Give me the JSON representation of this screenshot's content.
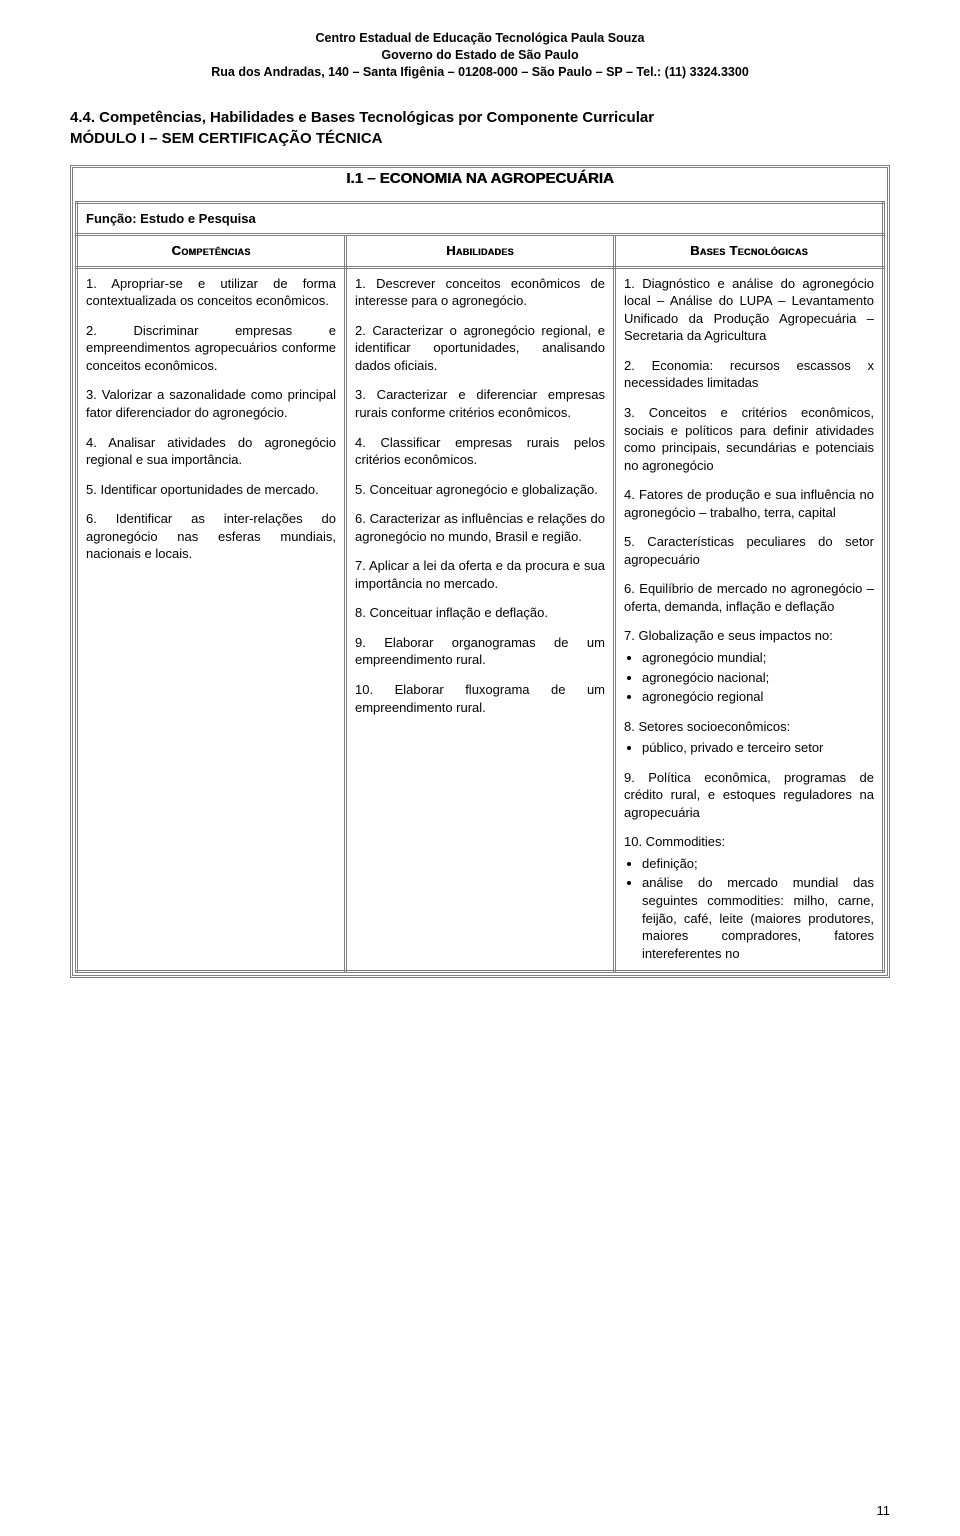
{
  "header": {
    "l1": "Centro Estadual de Educação Tecnológica Paula Souza",
    "l2": "Governo do Estado de São Paulo",
    "l3": "Rua dos Andradas, 140 – Santa Ifigênia – 01208-000 – São Paulo – SP – Tel.: (11) 3324.3300"
  },
  "section": {
    "title": "4.4.  Competências, Habilidades e Bases Tecnológicas por Componente Curricular",
    "sub": "MÓDULO I – SEM CERTIFICAÇÃO TÉCNICA"
  },
  "unit_title": "I.1 – ECONOMIA NA AGROPECUÁRIA",
  "funcao": "Função: Estudo e Pesquisa",
  "cols": {
    "c1": "Competências",
    "c2": "Habilidades",
    "c3": "Bases Tecnológicas"
  },
  "comp": {
    "p1": "1. Apropriar-se e utilizar de forma contextualizada os conceitos econômicos.",
    "p2": "2. Discriminar empresas e empreendimentos agropecuários conforme conceitos econômicos.",
    "p3": "3. Valorizar a sazonalidade como principal fator diferenciador do agronegócio.",
    "p4": "4. Analisar atividades do agronegócio regional e sua importância.",
    "p5": "5. Identificar oportunidades de mercado.",
    "p6": "6. Identificar as inter-relações do agronegócio nas esferas mundiais, nacionais e locais."
  },
  "hab": {
    "p1": "1. Descrever conceitos econômicos de interesse para o agronegócio.",
    "p2": "2. Caracterizar o agronegócio regional, e identificar oportunidades, analisando dados oficiais.",
    "p3": "3. Caracterizar e diferenciar empresas rurais conforme critérios econômicos.",
    "p4": "4. Classificar empresas rurais pelos critérios econômicos.",
    "p5": "5. Conceituar agronegócio e globalização.",
    "p6": "6. Caracterizar as influências e relações do agronegócio no mundo, Brasil e região.",
    "p7": "7. Aplicar a lei da oferta e da procura e sua importância no mercado.",
    "p8": "8. Conceituar inflação e deflação.",
    "p9": "9. Elaborar organogramas de um empreendimento rural.",
    "p10": "10. Elaborar fluxograma de um empreendimento rural."
  },
  "bases": {
    "p1": "1. Diagnóstico e análise do agronegócio local – Análise do LUPA – Levantamento Unificado da Produção Agropecuária – Secretaria da Agricultura",
    "p2": "2. Economia: recursos escassos x necessidades limitadas",
    "p3": "3. Conceitos e critérios econômicos, sociais e políticos para definir atividades como principais, secundárias e potenciais no agronegócio",
    "p4": "4. Fatores de produção e sua influência no agronegócio – trabalho, terra, capital",
    "p5": "5. Características peculiares do setor agropecuário",
    "p6": "6. Equilíbrio de mercado no agronegócio – oferta, demanda, inflação e deflação",
    "p7": "7. Globalização e seus impactos no:",
    "p7b1": "agronegócio mundial;",
    "p7b2": "agronegócio nacional;",
    "p7b3": "agronegócio regional",
    "p8": "8. Setores socioeconômicos:",
    "p8b1": "público, privado e terceiro setor",
    "p9": "9. Política econômica, programas de crédito rural, e estoques reguladores na agropecuária",
    "p10": "10. Commodities:",
    "p10b1": "definição;",
    "p10b2": "análise do mercado mundial das seguintes commodities: milho, carne, feijão, café, leite (maiores produtores, maiores compradores, fatores intereferentes no"
  },
  "page_number": "11"
}
